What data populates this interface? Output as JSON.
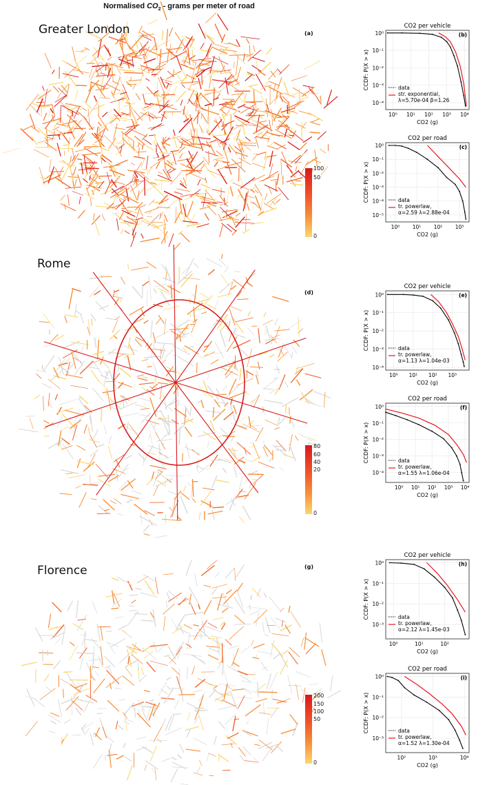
{
  "figure_title": "Normalised CO2 - grams per meter of road",
  "title_pre": "Normalised ",
  "title_co": "CO",
  "title_sub": "2",
  "title_post": " - grams per meter of road",
  "colors": {
    "light": "#fcd770",
    "mid": "#f7913a",
    "dark": "#d7191c",
    "dataline": "#000000",
    "fitline": "#e8141c",
    "grid": "#e6e6e6"
  },
  "maps": [
    {
      "city": "Greater London",
      "panel": "(a)",
      "colorbar_ticks": [
        "100",
        "50",
        "0"
      ],
      "colorbar_max": 100,
      "colorbar_values": [
        100,
        50,
        0
      ],
      "density": 0.9
    },
    {
      "city": "Rome",
      "panel": "(d)",
      "colorbar_ticks": [
        "80",
        "60",
        "40",
        "20",
        "0"
      ],
      "colorbar_max": 80,
      "colorbar_values": [
        80,
        60,
        40,
        20,
        0
      ],
      "density": 0.5
    },
    {
      "city": "Florence",
      "panel": "(g)",
      "colorbar_ticks": [
        "200",
        "150",
        "100",
        "50",
        "0"
      ],
      "colorbar_max": 200,
      "colorbar_values": [
        200,
        150,
        100,
        50,
        0
      ],
      "density": 0.35
    }
  ],
  "ylabel": "CCDF: P(X > x)",
  "xlabel": "CO2 (g)",
  "chart_data": [
    {
      "type": "line",
      "panel": "(b)",
      "title": "CO2 per vehicle",
      "xlabel": "CO2 (g)",
      "ylabel": "CCDF: P(X > x)",
      "xlim_log10": [
        -0.4,
        4.25
      ],
      "ylim_log10": [
        -4.4,
        0.15
      ],
      "xtick_exps": [
        0,
        1,
        2,
        3,
        4
      ],
      "ytick_exps": [
        0,
        -1,
        -2,
        -3,
        -4
      ],
      "legend": [
        "data",
        "str. exponential,",
        "λ=5.70e-04 β=1.26"
      ],
      "series": [
        {
          "name": "data",
          "log10_x": [
            -0.3,
            0.5,
            1.5,
            2.2,
            2.7,
            3.0,
            3.2,
            3.4,
            3.6,
            3.8,
            3.95,
            4.05
          ],
          "log10_y": [
            0,
            0,
            -0.02,
            -0.08,
            -0.25,
            -0.5,
            -0.8,
            -1.3,
            -1.9,
            -2.8,
            -3.6,
            -4.2
          ]
        },
        {
          "name": "fit",
          "log10_x": [
            2.55,
            2.9,
            3.2,
            3.5,
            3.75,
            3.95,
            4.1
          ],
          "log10_y": [
            0,
            -0.2,
            -0.5,
            -1.1,
            -1.9,
            -2.9,
            -4.2
          ]
        }
      ]
    },
    {
      "type": "line",
      "panel": "(c)",
      "title": "CO2 per road",
      "xlabel": "CO2 (g)",
      "ylabel": "CCDF: P(X > x)",
      "xlim_log10": [
        -0.45,
        3.45
      ],
      "ylim_log10": [
        -5.5,
        0.2
      ],
      "xtick_exps": [
        0,
        1,
        2,
        3
      ],
      "ytick_exps": [
        0,
        -1,
        -2,
        -3,
        -4,
        -5
      ],
      "legend": [
        "data",
        "tr. powerlaw,",
        "α=2.59 λ=2.88e-04"
      ],
      "series": [
        {
          "name": "data",
          "log10_x": [
            -0.3,
            0,
            0.3,
            0.6,
            1.0,
            1.5,
            2.0,
            2.4,
            2.8,
            3.0,
            3.15,
            3.25,
            3.3
          ],
          "log10_y": [
            0,
            0,
            -0.05,
            -0.2,
            -0.5,
            -1.0,
            -1.6,
            -2.3,
            -2.8,
            -3.3,
            -4.0,
            -4.8,
            -5.3
          ]
        },
        {
          "name": "fit",
          "log10_x": [
            1.5,
            2.0,
            2.5,
            3.0,
            3.3
          ],
          "log10_y": [
            0,
            -0.8,
            -1.6,
            -2.4,
            -3.0
          ]
        }
      ]
    },
    {
      "type": "line",
      "panel": "(e)",
      "title": "CO2 per vehicle",
      "xlabel": "CO2 (g)",
      "ylabel": "CCDF: P(X > x)",
      "xlim_log10": [
        -0.4,
        3.85
      ],
      "ylim_log10": [
        -4.15,
        0.2
      ],
      "xtick_exps": [
        0,
        1,
        2,
        3
      ],
      "ytick_exps": [
        0,
        -1,
        -2,
        -3,
        -4
      ],
      "legend": [
        "data",
        "tr. powerlaw,",
        "α=1.13 λ=1.04e-03"
      ],
      "series": [
        {
          "name": "data",
          "log10_x": [
            -0.3,
            0.5,
            1.0,
            1.5,
            2.0,
            2.4,
            2.8,
            3.1,
            3.3,
            3.45,
            3.55,
            3.6
          ],
          "log10_y": [
            0,
            0,
            -0.03,
            -0.1,
            -0.35,
            -0.75,
            -1.4,
            -2.1,
            -2.7,
            -3.3,
            -3.7,
            -3.95
          ]
        },
        {
          "name": "fit",
          "log10_x": [
            1.9,
            2.3,
            2.7,
            3.0,
            3.3,
            3.5,
            3.65
          ],
          "log10_y": [
            0,
            -0.4,
            -1.0,
            -1.6,
            -2.3,
            -3.0,
            -3.6
          ]
        }
      ]
    },
    {
      "type": "line",
      "panel": "(f)",
      "title": "CO2 per road",
      "xlabel": "CO2 (g)",
      "ylabel": "CCDF: P(X > x)",
      "xlim_log10": [
        -0.8,
        4.25
      ],
      "ylim_log10": [
        -4.6,
        0.2
      ],
      "xtick_exps": [
        0,
        1,
        2,
        3,
        4
      ],
      "ytick_exps": [
        0,
        -1,
        -2,
        -3,
        -4
      ],
      "legend": [
        "data",
        "tr. powerlaw,",
        "α=1.55 λ=1.06e-04"
      ],
      "series": [
        {
          "name": "data",
          "log10_x": [
            -0.8,
            -0.2,
            0.5,
            1.2,
            2.0,
            2.7,
            3.2,
            3.5,
            3.7,
            3.8,
            3.9
          ],
          "log10_y": [
            -0.35,
            -0.55,
            -0.8,
            -1.1,
            -1.5,
            -1.95,
            -2.5,
            -3.0,
            -3.5,
            -4.0,
            -4.5
          ]
        },
        {
          "name": "fit",
          "log10_x": [
            -0.8,
            0.2,
            1.2,
            2.2,
            3.0,
            3.5,
            3.9,
            4.1
          ],
          "log10_y": [
            -0.15,
            -0.4,
            -0.7,
            -1.15,
            -1.7,
            -2.3,
            -2.9,
            -3.4
          ]
        }
      ]
    },
    {
      "type": "line",
      "panel": "(h)",
      "title": "CO2 per vehicle",
      "xlabel": "CO2 (g)",
      "ylabel": "CCDF: P(X > x)",
      "xlim_log10": [
        -0.3,
        2.95
      ],
      "ylim_log10": [
        -3.7,
        0.15
      ],
      "xtick_exps": [
        0,
        1,
        2
      ],
      "ytick_exps": [
        0,
        -1,
        -2,
        -3
      ],
      "legend": [
        "data",
        "tr. powerlaw,",
        "α=2.12 λ=1.45e-03"
      ],
      "series": [
        {
          "name": "data",
          "log10_x": [
            -0.15,
            0.3,
            0.8,
            1.2,
            1.6,
            2.0,
            2.3,
            2.5,
            2.65,
            2.8
          ],
          "log10_y": [
            0,
            -0.02,
            -0.08,
            -0.3,
            -0.7,
            -1.2,
            -1.7,
            -2.3,
            -2.8,
            -3.5
          ]
        },
        {
          "name": "fit",
          "log10_x": [
            1.3,
            1.7,
            2.1,
            2.5,
            2.8
          ],
          "log10_y": [
            0,
            -0.5,
            -1.1,
            -1.8,
            -2.4
          ]
        }
      ]
    },
    {
      "type": "line",
      "panel": "(i)",
      "title": "CO2 per road",
      "xlabel": "CO2 (g)",
      "ylabel": "CCDF: P(X > x)",
      "xlim_log10": [
        1.5,
        4.15
      ],
      "ylim_log10": [
        -3.7,
        0.15
      ],
      "xtick_exps": [
        2,
        3,
        4
      ],
      "ytick_exps": [
        0,
        -1,
        -2,
        -3
      ],
      "legend": [
        "data",
        "tr. powerlaw,",
        "α=1.52 λ=1.30e-04"
      ],
      "series": [
        {
          "name": "data",
          "log10_x": [
            1.55,
            1.7,
            1.9,
            2.1,
            2.4,
            2.8,
            3.2,
            3.5,
            3.7,
            3.85,
            3.95
          ],
          "log10_y": [
            0,
            -0.05,
            -0.2,
            -0.55,
            -0.9,
            -1.25,
            -1.65,
            -2.1,
            -2.6,
            -3.1,
            -3.5
          ]
        },
        {
          "name": "fit",
          "log10_x": [
            2.1,
            2.5,
            2.9,
            3.3,
            3.6,
            3.9,
            4.05
          ],
          "log10_y": [
            0,
            -0.4,
            -0.85,
            -1.35,
            -1.8,
            -2.4,
            -2.85
          ]
        }
      ]
    }
  ]
}
